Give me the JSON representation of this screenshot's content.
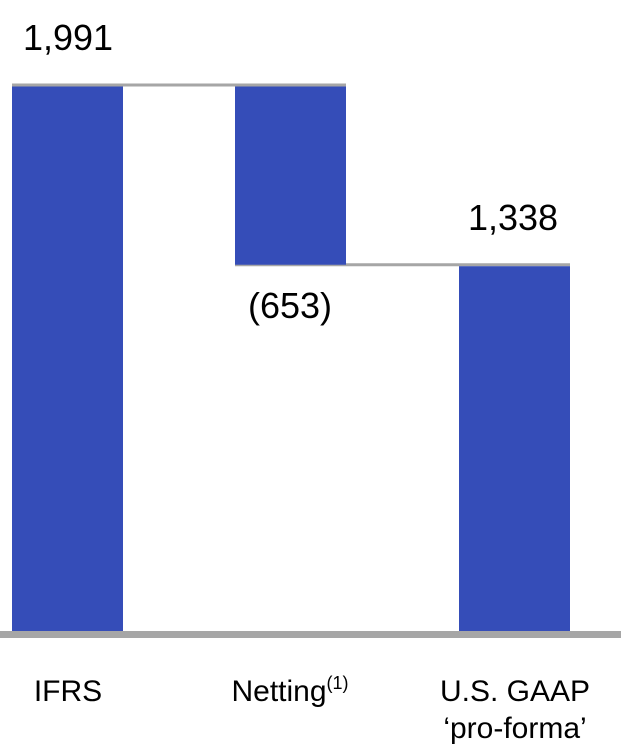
{
  "chart_data": {
    "type": "bar",
    "subtype": "waterfall",
    "categories": [
      "IFRS",
      "Netting",
      "U.S. GAAP 'pro-forma'"
    ],
    "category_lines": [
      [
        "IFRS"
      ],
      [
        "Netting"
      ],
      [
        "U.S. GAAP",
        "‘pro-forma’"
      ]
    ],
    "category_superscripts": [
      "",
      "(1)",
      ""
    ],
    "values": [
      1991,
      -653,
      1338
    ],
    "data_labels": [
      "1,991",
      "(653)",
      "1,338"
    ],
    "ylim": [
      0,
      1991
    ],
    "grid": false,
    "legend": "none",
    "title": "",
    "xlabel": "",
    "ylabel": ""
  },
  "colors": {
    "bar": "#354db8",
    "connector": "#a6a6a6",
    "axis": "#a6a6a6",
    "text": "#000000"
  }
}
